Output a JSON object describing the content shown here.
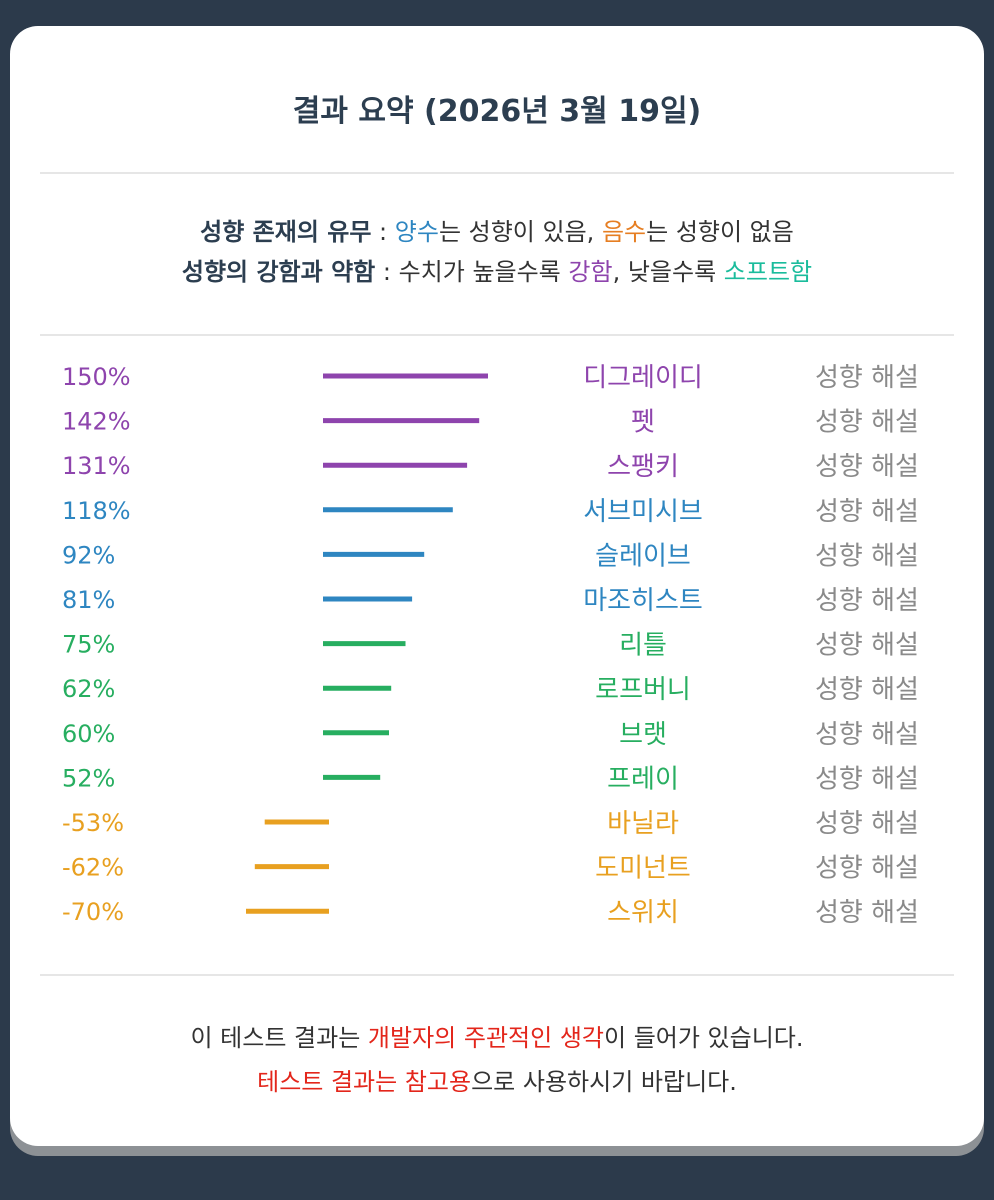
{
  "title": "결과 요약 (2026년 3월 19일)",
  "legend": {
    "line1": {
      "bold": "성향 존재의 유무",
      "sep": " : ",
      "positive": "양수",
      "mid1": "는 성향이 있음, ",
      "negative": "음수",
      "mid2": "는 성향이 없음"
    },
    "line2": {
      "bold": "성향의 강함과 약함",
      "sep": " : 수치가 높을수록 ",
      "strong": "강함",
      "mid": ", 낮을수록 ",
      "soft": "소프트함"
    }
  },
  "link_label": "성향 해설",
  "colors": {
    "purple": "#8e44ad",
    "blue": "#2e86c1",
    "green": "#27ae60",
    "orange": "#e8a020",
    "gray": "#8a8a8a",
    "red": "#e3261b"
  },
  "chart_data": {
    "type": "bar",
    "orientation": "horizontal",
    "categories": [
      "디그레이디",
      "펫",
      "스팽키",
      "서브미시브",
      "슬레이브",
      "마조히스트",
      "리틀",
      "로프버니",
      "브랫",
      "프레이",
      "바닐라",
      "도미넌트",
      "스위치"
    ],
    "values": [
      150,
      142,
      131,
      118,
      92,
      81,
      75,
      62,
      60,
      52,
      -53,
      -62,
      -70
    ],
    "value_labels": [
      "150%",
      "142%",
      "131%",
      "118%",
      "92%",
      "81%",
      "75%",
      "62%",
      "60%",
      "52%",
      "-53%",
      "-62%",
      "-70%"
    ],
    "color_groups": [
      "purple",
      "purple",
      "purple",
      "blue",
      "blue",
      "blue",
      "green",
      "green",
      "green",
      "green",
      "orange",
      "orange",
      "orange"
    ],
    "unit": "%"
  },
  "note": {
    "line1_a": "이 테스트 결과는 ",
    "line1_red": "개발자의 주관적인 생각",
    "line1_b": "이 들어가 있습니다.",
    "line2_red": "테스트 결과는 참고용",
    "line2_b": "으로 사용하시기 바랍니다."
  }
}
